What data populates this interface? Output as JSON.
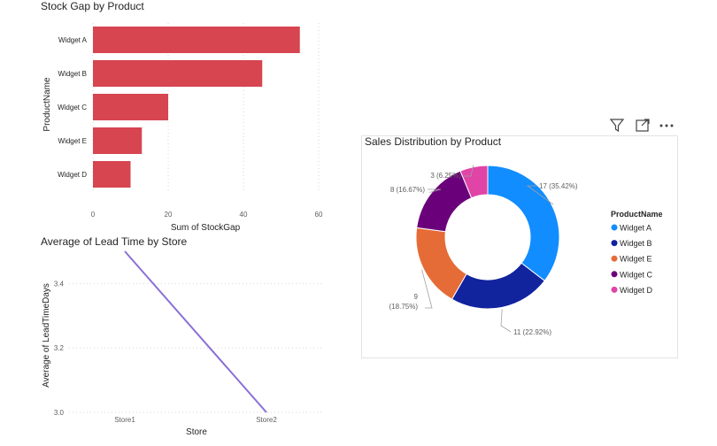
{
  "chart_data": [
    {
      "type": "bar",
      "orientation": "horizontal",
      "title": "Stock Gap by Product",
      "xlabel": "Sum of StockGap",
      "ylabel": "ProductName",
      "categories": [
        "Widget A",
        "Widget B",
        "Widget C",
        "Widget E",
        "Widget D"
      ],
      "values": [
        55,
        45,
        20,
        13,
        10
      ],
      "xticks": [
        "0",
        "20",
        "40",
        "60"
      ],
      "xlim": [
        0,
        60
      ],
      "grid": "vertical dotted",
      "color": "#D64550"
    },
    {
      "type": "line",
      "title": "Average of Lead Time by Store",
      "xlabel": "Store",
      "ylabel": "Average of LeadTimeDays",
      "categories": [
        "Store1",
        "Store2"
      ],
      "values": [
        3.5,
        3.0
      ],
      "yticks": [
        "3.0",
        "3.2",
        "3.4"
      ],
      "ylim": [
        3.0,
        3.5
      ],
      "grid": "horizontal dotted",
      "color": "#8B6FD6"
    },
    {
      "type": "pie",
      "variant": "donut",
      "title": "Sales Distribution by Product",
      "legend_title": "ProductName",
      "legend_position": "right",
      "slices": [
        {
          "label": "Widget A",
          "value": 17,
          "display": "17 (35.42%)",
          "color": "#118DFF"
        },
        {
          "label": "Widget B",
          "value": 11,
          "display": "11 (22.92%)",
          "color": "#12239E"
        },
        {
          "label": "Widget E",
          "value": 9,
          "display": "9",
          "display_pct": "(18.75%)",
          "color": "#E66C37"
        },
        {
          "label": "Widget C",
          "value": 8,
          "display": "8 (16.67%)",
          "color": "#6B007B"
        },
        {
          "label": "Widget D",
          "value": 3,
          "display": "3 (6.25%)",
          "color": "#E044A7"
        }
      ]
    }
  ],
  "icons": [
    "filter-icon",
    "focus-mode-icon",
    "more-options-icon"
  ]
}
